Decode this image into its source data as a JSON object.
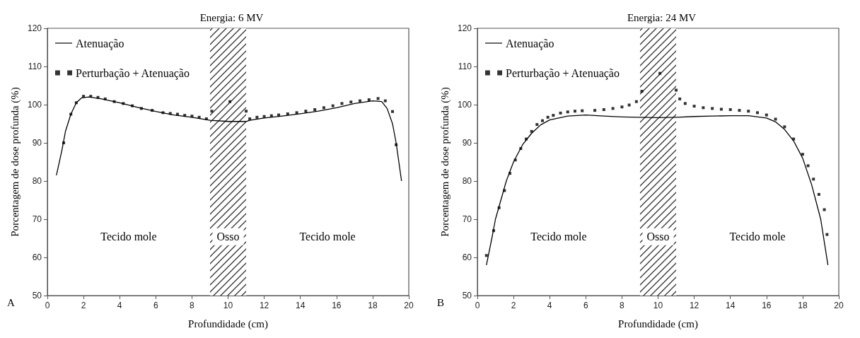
{
  "chart_data": [
    {
      "type": "line",
      "title": "Energia: 6 MV",
      "xlabel": "Profundidade (cm)",
      "ylabel": "Porcentagem de dose profunda (%)",
      "xlim": [
        0,
        20
      ],
      "xticks": [
        0,
        2,
        4,
        6,
        8,
        10,
        12,
        14,
        16,
        18,
        20
      ],
      "ylim": [
        50,
        120
      ],
      "yticks": [
        50,
        60,
        70,
        80,
        90,
        100,
        110,
        120
      ],
      "grid": false,
      "legend": "top left",
      "series": [
        {
          "name": "Atenuação",
          "type": "line",
          "color": "#000000",
          "line_style": "solid",
          "marker": "none",
          "x": [
            0.5,
            0.8,
            1.0,
            1.3,
            1.6,
            1.9,
            2.3,
            3,
            4,
            5,
            6,
            7,
            8,
            9,
            10,
            11,
            11.2,
            12,
            13,
            14,
            15,
            16,
            17,
            18,
            18.5,
            18.8,
            19.1,
            19.3,
            19.6
          ],
          "values": [
            81.5,
            88,
            93,
            97.5,
            100.5,
            101.8,
            102,
            101.5,
            100.5,
            99.3,
            98.2,
            97.3,
            96.7,
            95.9,
            95.6,
            95.6,
            95.9,
            96.5,
            97,
            97.6,
            98.3,
            99.2,
            100.3,
            101,
            100.8,
            99,
            95,
            90,
            80
          ]
        },
        {
          "name": "Perturbação + Atenuação",
          "type": "scatter",
          "color": "#000000",
          "marker": "square",
          "x": [
            0.9,
            1.3,
            1.6,
            2.0,
            2.4,
            2.8,
            3.2,
            3.7,
            4.2,
            4.7,
            5.2,
            5.8,
            6.4,
            6.8,
            7.2,
            7.6,
            8.0,
            8.4,
            8.8,
            9.1,
            10.1,
            11.0,
            11.2,
            11.6,
            12.0,
            12.4,
            12.8,
            13.3,
            13.8,
            14.3,
            14.8,
            15.3,
            15.8,
            16.3,
            16.8,
            17.3,
            17.8,
            18.3,
            18.7,
            19.1,
            19.3
          ],
          "values": [
            90,
            97.5,
            100.5,
            102.2,
            102.2,
            101.9,
            101.5,
            100.8,
            100.3,
            99.7,
            99,
            98.5,
            97.9,
            97.7,
            97.5,
            97.2,
            97,
            96.7,
            96.3,
            98.3,
            100.8,
            98.3,
            96.3,
            96.7,
            96.9,
            97.1,
            97.3,
            97.6,
            97.9,
            98.3,
            98.7,
            99.2,
            99.7,
            100.3,
            100.7,
            101,
            101.3,
            101.6,
            101,
            98.2,
            89.5
          ]
        }
      ],
      "bands": [
        {
          "axis": "x",
          "from": 9,
          "to": 11,
          "label": "Osso"
        }
      ],
      "annotations": [
        "Tecido mole",
        "Tecido mole",
        "A"
      ]
    },
    {
      "type": "line",
      "title": "Energia: 24 MV",
      "xlabel": "Profundidade (cm)",
      "ylabel": "Porcentagem de dose profunda (%)",
      "xlim": [
        0,
        20
      ],
      "xticks": [
        0,
        2,
        4,
        6,
        8,
        10,
        12,
        14,
        16,
        18,
        20
      ],
      "ylim": [
        50,
        120
      ],
      "yticks": [
        50,
        60,
        70,
        80,
        90,
        100,
        110,
        120
      ],
      "grid": false,
      "legend": "top left",
      "series": [
        {
          "name": "Atenuação",
          "type": "line",
          "color": "#000000",
          "line_style": "solid",
          "marker": "none",
          "x": [
            0.5,
            0.8,
            1.0,
            1.3,
            1.6,
            2,
            2.5,
            3,
            3.5,
            4,
            5,
            6,
            7,
            8,
            9,
            10,
            11,
            12,
            13,
            14,
            15,
            16,
            16.5,
            17,
            17.5,
            18,
            18.5,
            19,
            19.4
          ],
          "values": [
            58,
            65,
            70,
            75,
            80,
            85,
            89.5,
            92.5,
            94.7,
            96,
            97,
            97.3,
            97,
            96.8,
            96.7,
            96.6,
            96.7,
            96.9,
            97,
            97.1,
            97.1,
            96.5,
            95.5,
            93.5,
            90.5,
            86,
            79,
            70,
            58
          ]
        },
        {
          "name": "Perturbação + Atenuação",
          "type": "scatter",
          "color": "#000000",
          "marker": "square",
          "x": [
            0.5,
            0.9,
            1.2,
            1.5,
            1.8,
            2.1,
            2.4,
            2.7,
            3.0,
            3.3,
            3.6,
            3.9,
            4.2,
            4.6,
            5.0,
            5.4,
            5.8,
            6.5,
            7.0,
            7.5,
            8.0,
            8.4,
            8.8,
            9.1,
            10.1,
            11.0,
            11.2,
            11.5,
            12.0,
            12.5,
            13.0,
            13.5,
            14.0,
            14.5,
            15.0,
            15.5,
            16.0,
            16.5,
            17.0,
            17.5,
            18.0,
            18.3,
            18.6,
            18.9,
            19.2,
            19.35
          ],
          "values": [
            60.5,
            67,
            73,
            77.5,
            82,
            85.5,
            88.5,
            91,
            93,
            94.8,
            95.8,
            96.7,
            97.2,
            97.8,
            98.1,
            98.3,
            98.4,
            98.5,
            98.7,
            99,
            99.4,
            99.9,
            100.8,
            103.5,
            108.2,
            103.8,
            101.5,
            100.3,
            99.6,
            99.2,
            99,
            98.8,
            98.7,
            98.5,
            98.3,
            97.9,
            97.3,
            96.2,
            94.2,
            91,
            87,
            84,
            80.5,
            76.5,
            72.5,
            66
          ]
        }
      ],
      "bands": [
        {
          "axis": "x",
          "from": 9,
          "to": 11,
          "label": "Osso"
        }
      ],
      "annotations": [
        "Tecido mole",
        "Tecido mole",
        "B"
      ]
    }
  ]
}
